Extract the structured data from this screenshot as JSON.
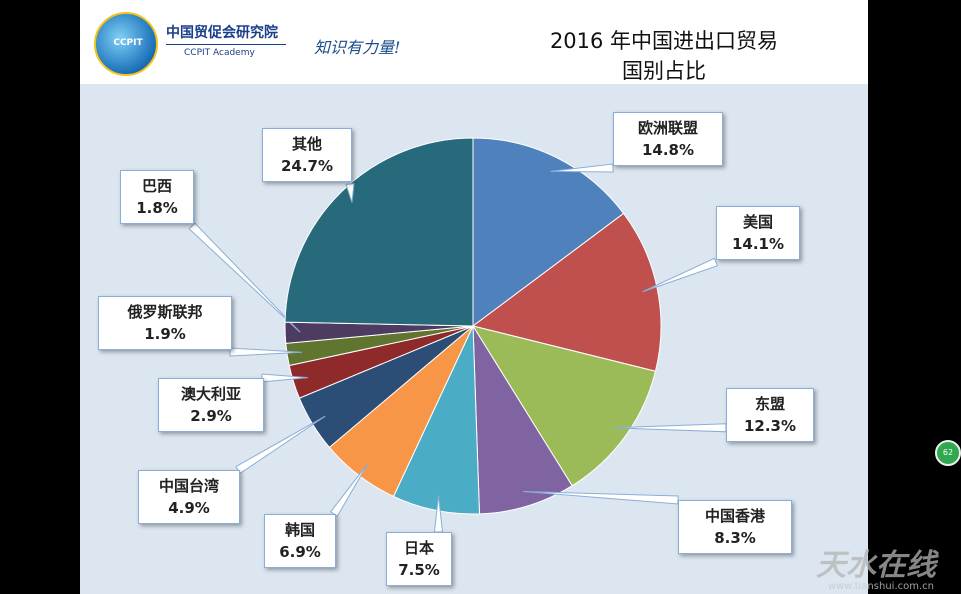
{
  "header": {
    "logo_text": "CCPIT",
    "org_name_cn": "中国贸促会研究院",
    "org_name_en": "CCPIT Academy",
    "slogan": "知识有力量!",
    "title_line1": "2016 年中国进出口贸易",
    "title_line2": "国别占比"
  },
  "chart_data": {
    "type": "pie",
    "title": "2016 年中国进出口贸易国别占比",
    "slices": [
      {
        "label": "欧洲联盟",
        "value": 14.8,
        "display": "14.8%",
        "color": "#4f81bd"
      },
      {
        "label": "美国",
        "value": 14.1,
        "display": "14.1%",
        "color": "#c0504d"
      },
      {
        "label": "东盟",
        "value": 12.3,
        "display": "12.3%",
        "color": "#9bbb59"
      },
      {
        "label": "中国香港",
        "value": 8.3,
        "display": "8.3%",
        "color": "#8064a2"
      },
      {
        "label": "日本",
        "value": 7.5,
        "display": "7.5%",
        "color": "#4bacc6"
      },
      {
        "label": "韩国",
        "value": 6.9,
        "display": "6.9%",
        "color": "#f79646"
      },
      {
        "label": "中国台湾",
        "value": 4.9,
        "display": "4.9%",
        "color": "#2c4d75"
      },
      {
        "label": "澳大利亚",
        "value": 2.9,
        "display": "2.9%",
        "color": "#8e2a2a"
      },
      {
        "label": "俄罗斯联邦",
        "value": 1.9,
        "display": "1.9%",
        "color": "#5f7530"
      },
      {
        "label": "巴西",
        "value": 1.8,
        "display": "1.8%",
        "color": "#4d3b62"
      },
      {
        "label": "其他",
        "value": 24.7,
        "display": "24.7%",
        "color": "#276a7c"
      }
    ],
    "start_angle_deg": 0,
    "direction": "clockwise",
    "legend": "callouts"
  },
  "watermark": {
    "text": "天水在线",
    "url": "www.tianshui.com.cn"
  },
  "side_badge": "62"
}
